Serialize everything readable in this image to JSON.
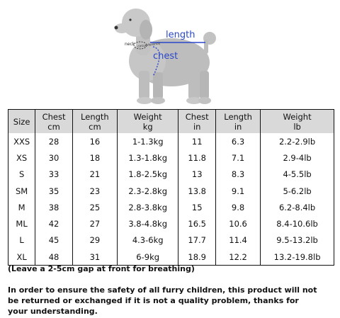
{
  "diagram": {
    "length_label": "length",
    "chest_label": "chest",
    "neck_label": "neck",
    "neck_circumference_label": "circumference"
  },
  "size_table": {
    "headers": [
      {
        "top": "Size",
        "bottom": ""
      },
      {
        "top": "Chest",
        "bottom": "cm"
      },
      {
        "top": "Length",
        "bottom": "cm"
      },
      {
        "top": "Weight",
        "bottom": "kg"
      },
      {
        "top": "Chest",
        "bottom": "in"
      },
      {
        "top": "Length",
        "bottom": "in"
      },
      {
        "top": "Weight",
        "bottom": "lb"
      }
    ],
    "rows": [
      [
        "XXS",
        "28",
        "16",
        "1-1.3kg",
        "11",
        "6.3",
        "2.2-2.9lb"
      ],
      [
        "XS",
        "30",
        "18",
        "1.3-1.8kg",
        "11.8",
        "7.1",
        "2.9-4lb"
      ],
      [
        "S",
        "33",
        "21",
        "1.8-2.5kg",
        "13",
        "8.3",
        "4-5.5lb"
      ],
      [
        "SM",
        "35",
        "23",
        "2.3-2.8kg",
        "13.8",
        "9.1",
        "5-6.2lb"
      ],
      [
        "M",
        "38",
        "25",
        "2.8-3.8kg",
        "15",
        "9.8",
        "6.2-8.4lb"
      ],
      [
        "ML",
        "42",
        "27",
        "3.8-4.8kg",
        "16.5",
        "10.6",
        "8.4-10.6lb"
      ],
      [
        "L",
        "45",
        "29",
        "4.3-6kg",
        "17.7",
        "11.4",
        "9.5-13.2lb"
      ],
      [
        "XL",
        "48",
        "31",
        "6-9kg",
        "18.9",
        "12.2",
        "13.2-19.8lb"
      ]
    ]
  },
  "notes": {
    "gap_note": "(Leave a 2-5cm gap at front for breathing)",
    "safety_note": "In order to ensure the safety of all furry children, this product will not be returned or exchanged if it is not a quality problem, thanks for your understanding."
  }
}
